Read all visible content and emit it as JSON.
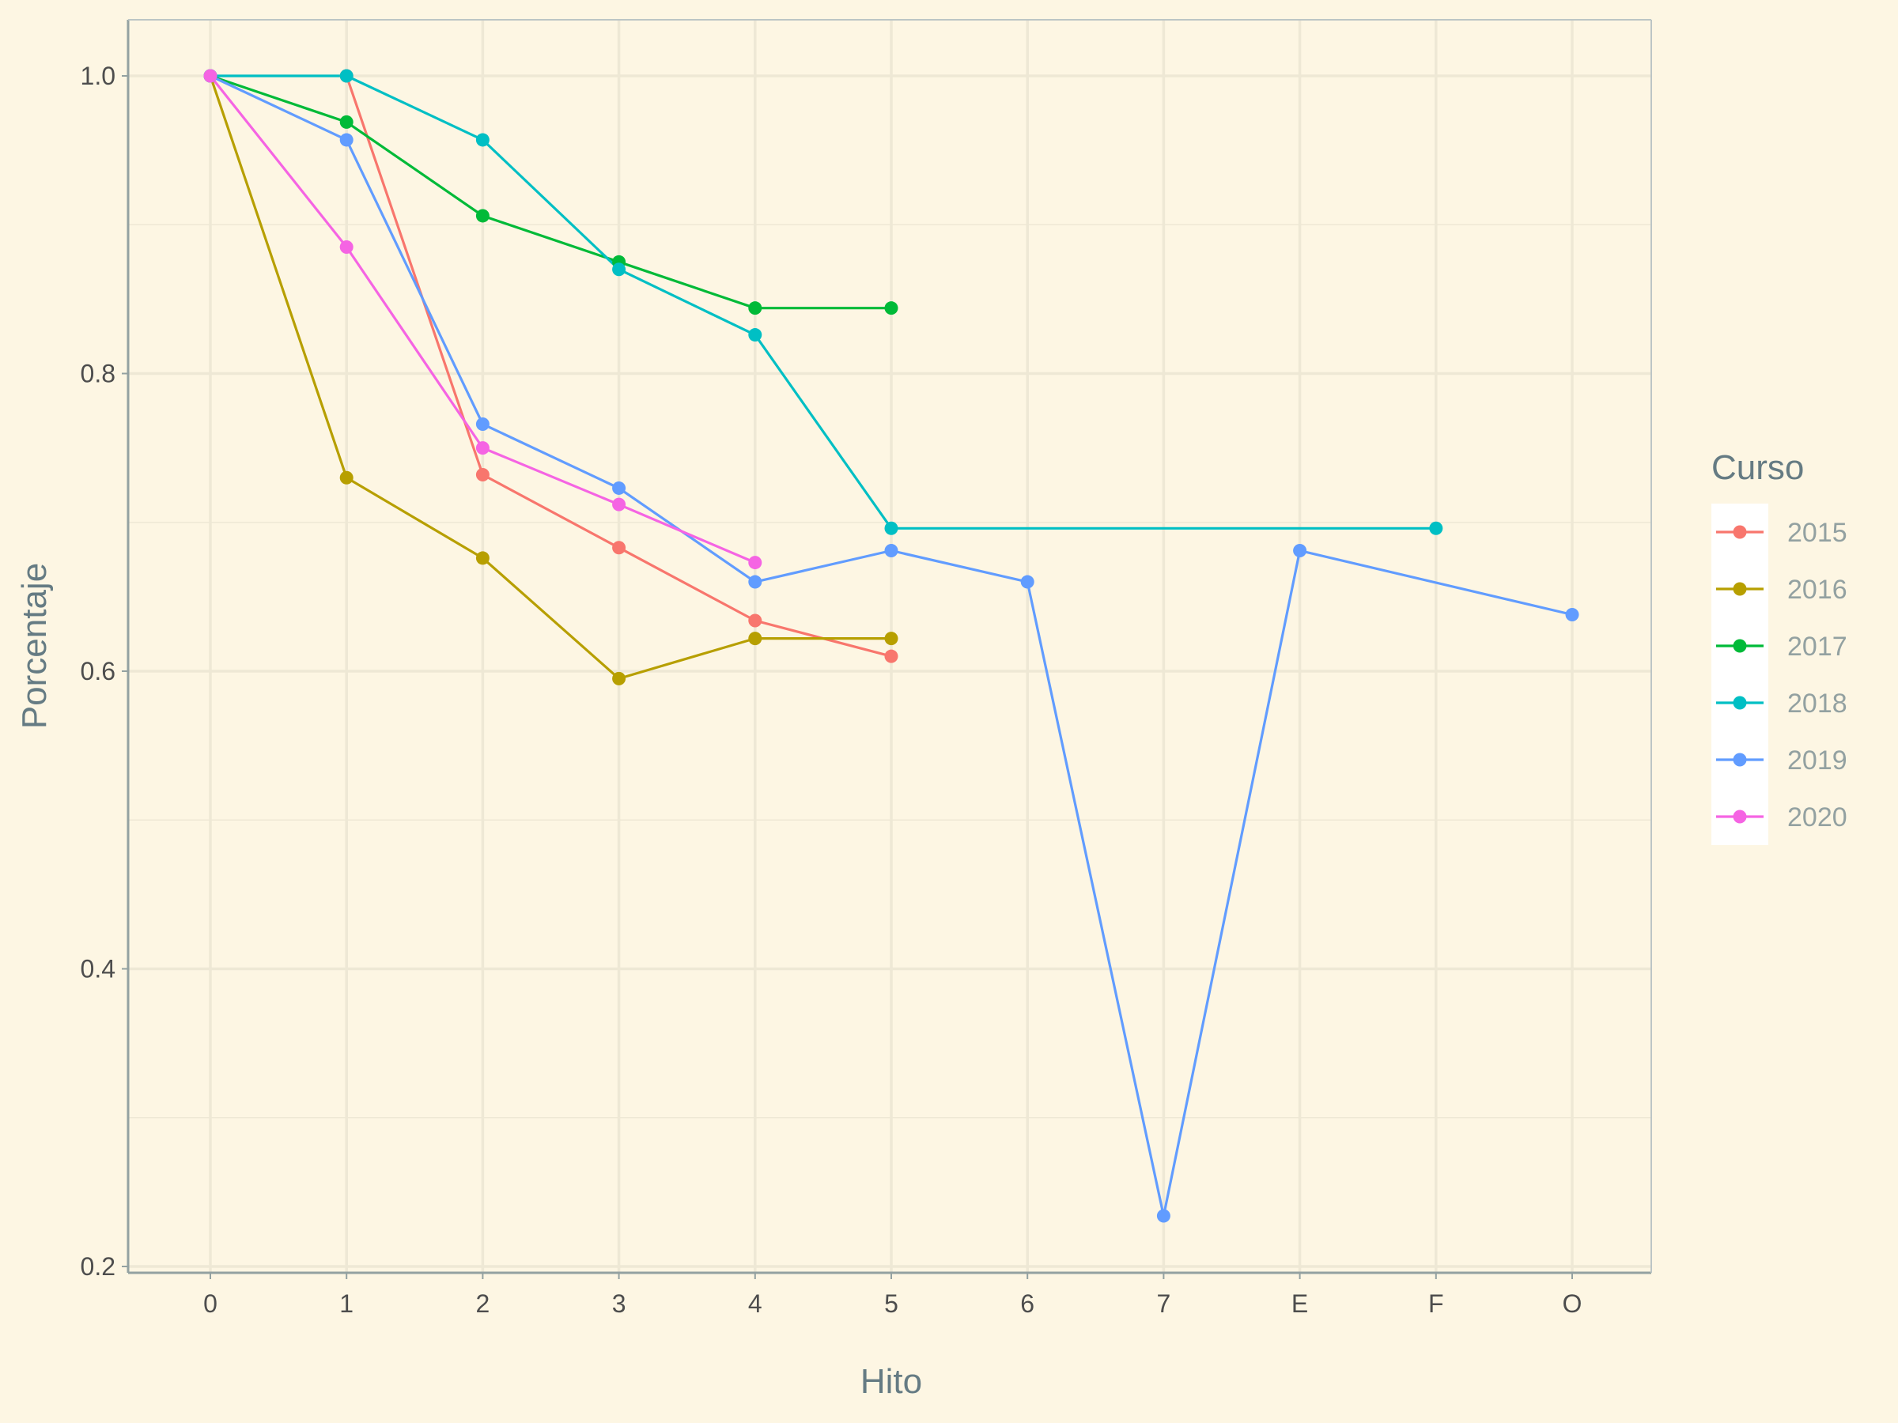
{
  "chart_data": {
    "type": "line",
    "xlabel": "Hito",
    "ylabel": "Porcentaje",
    "categories": [
      "0",
      "1",
      "2",
      "3",
      "4",
      "5",
      "6",
      "7",
      "E",
      "F",
      "O"
    ],
    "ylim": [
      0.2,
      1.0
    ],
    "y_ticks": [
      "0.2",
      "0.4",
      "0.6",
      "0.8",
      "1.0"
    ],
    "grid": true,
    "legend_position": "right",
    "legend_title": "Curso",
    "series": [
      {
        "name": "2015",
        "color": "#F8766D",
        "points": [
          [
            "1",
            1.0
          ],
          [
            "2",
            0.732
          ],
          [
            "3",
            0.683
          ],
          [
            "4",
            0.634
          ],
          [
            "5",
            0.61
          ]
        ]
      },
      {
        "name": "2016",
        "color": "#B79F00",
        "points": [
          [
            "0",
            1.0
          ],
          [
            "1",
            0.73
          ],
          [
            "2",
            0.676
          ],
          [
            "3",
            0.595
          ],
          [
            "4",
            0.622
          ],
          [
            "5",
            0.622
          ]
        ]
      },
      {
        "name": "2017",
        "color": "#00BA38",
        "points": [
          [
            "0",
            1.0
          ],
          [
            "1",
            0.969
          ],
          [
            "2",
            0.906
          ],
          [
            "3",
            0.875
          ],
          [
            "4",
            0.844
          ],
          [
            "5",
            0.844
          ]
        ]
      },
      {
        "name": "2018",
        "color": "#00BFC4",
        "points": [
          [
            "0",
            1.0
          ],
          [
            "1",
            1.0
          ],
          [
            "2",
            0.957
          ],
          [
            "3",
            0.87
          ],
          [
            "4",
            0.826
          ],
          [
            "5",
            0.696
          ],
          [
            "F",
            0.696
          ]
        ]
      },
      {
        "name": "2019",
        "color": "#619CFF",
        "points": [
          [
            "0",
            1.0
          ],
          [
            "1",
            0.957
          ],
          [
            "2",
            0.766
          ],
          [
            "3",
            0.723
          ],
          [
            "4",
            0.66
          ],
          [
            "5",
            0.681
          ],
          [
            "6",
            0.66
          ],
          [
            "7",
            0.234
          ],
          [
            "E",
            0.681
          ],
          [
            "O",
            0.638
          ]
        ]
      },
      {
        "name": "2020",
        "color": "#F564E3",
        "points": [
          [
            "0",
            1.0
          ],
          [
            "1",
            0.885
          ],
          [
            "2",
            0.75
          ],
          [
            "3",
            0.712
          ],
          [
            "4",
            0.673
          ]
        ]
      }
    ]
  }
}
